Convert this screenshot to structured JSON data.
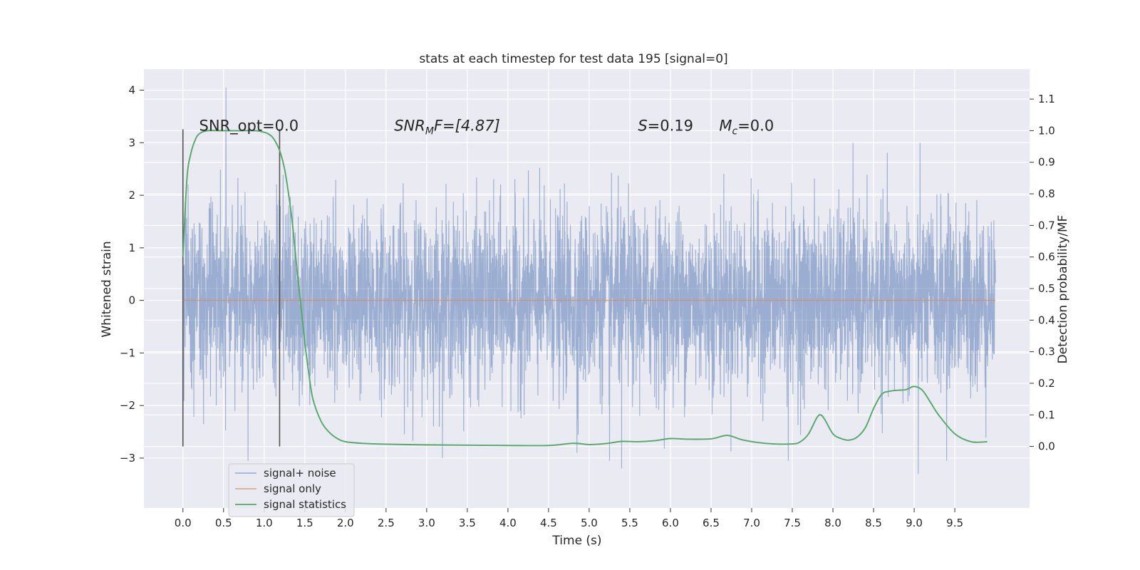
{
  "chart_data": {
    "type": "line",
    "title": "stats at each timestep for test data 195 [signal=0]",
    "xlabel": "Time (s)",
    "ylabel": "Whitened strain",
    "y2label": "Detection probability/MF",
    "xlim": [
      -0.48,
      10.42
    ],
    "ylim": [
      -3.95,
      4.4
    ],
    "y2lim": [
      -0.195,
      1.195
    ],
    "x_ticks": [
      0.0,
      0.5,
      1.0,
      1.5,
      2.0,
      2.5,
      3.0,
      3.5,
      4.0,
      4.5,
      5.0,
      5.5,
      6.0,
      6.5,
      7.0,
      7.5,
      8.0,
      8.5,
      9.0,
      9.5
    ],
    "x_tick_labels": [
      "0.0",
      "0.5",
      "1.0",
      "1.5",
      "2.0",
      "2.5",
      "3.0",
      "3.5",
      "4.0",
      "4.5",
      "5.0",
      "5.5",
      "6.0",
      "6.5",
      "7.0",
      "7.5",
      "8.0",
      "8.5",
      "9.0",
      "9.5"
    ],
    "y_ticks": [
      4,
      3,
      2,
      1,
      0,
      -1,
      -2,
      -3
    ],
    "y_tick_labels": [
      "4",
      "3",
      "2",
      "1",
      "0",
      "−1",
      "−2",
      "−3"
    ],
    "y2_ticks": [
      1.1,
      1.0,
      0.9,
      0.8,
      0.7,
      0.6,
      0.5,
      0.4,
      0.3,
      0.2,
      0.1,
      0.0
    ],
    "y2_tick_labels": [
      "1.1",
      "1.0",
      "0.9",
      "0.8",
      "0.7",
      "0.6",
      "0.5",
      "0.4",
      "0.3",
      "0.2",
      "0.1",
      "0.0"
    ],
    "grid": true,
    "legend": "lower-left",
    "annotations": {
      "snr_opt": {
        "x": 0.2,
        "y2": 1.0,
        "text": "SNR_opt=0.0"
      },
      "snr_mf": {
        "x": 2.6,
        "y2": 1.0,
        "base": "SNR",
        "sub": "M",
        "after_sub": "F=[4.87]"
      },
      "s_stat": {
        "x": 5.6,
        "y2": 1.0,
        "base": "S",
        "rest": "=0.19"
      },
      "chirp_mass": {
        "x": 6.6,
        "y2": 1.0,
        "base": "M",
        "sub": "c",
        "rest": "=0.0"
      }
    },
    "vlines": [
      {
        "x": 0.0,
        "y2_range": [
          0.0,
          1.0
        ]
      },
      {
        "x": 1.19,
        "y2_range": [
          0.0,
          1.0
        ]
      }
    ],
    "series": [
      {
        "name": "signal+ noise",
        "color": "#4c72b0",
        "axis": "left",
        "kind": "noise",
        "x_range": [
          0.0,
          10.0
        ],
        "noise_std": 0.85,
        "extremes": [
          {
            "x": 0.53,
            "y": 4.05
          },
          {
            "x": 0.8,
            "y": -3.05
          },
          {
            "x": 5.4,
            "y": -3.2
          },
          {
            "x": 9.05,
            "y": -3.3
          },
          {
            "x": 5.25,
            "y": -3.05
          },
          {
            "x": 7.45,
            "y": -3.05
          },
          {
            "x": 9.4,
            "y": -3.05
          },
          {
            "x": 4.85,
            "y": -2.9
          }
        ]
      },
      {
        "name": "signal only",
        "color": "#dd8452",
        "axis": "left",
        "x": [
          0.0,
          10.0
        ],
        "y": [
          0.0,
          0.0
        ]
      },
      {
        "name": "signal statistics",
        "color": "#55a868",
        "axis": "right",
        "x": [
          0.0,
          0.05,
          0.1,
          0.15,
          0.2,
          0.3,
          0.5,
          0.7,
          0.9,
          1.0,
          1.05,
          1.1,
          1.15,
          1.2,
          1.25,
          1.3,
          1.35,
          1.4,
          1.45,
          1.5,
          1.55,
          1.6,
          1.7,
          1.8,
          1.9,
          2.0,
          2.2,
          2.5,
          3.0,
          3.5,
          4.0,
          4.5,
          4.8,
          5.0,
          5.2,
          5.4,
          5.6,
          5.8,
          6.0,
          6.2,
          6.5,
          6.7,
          6.9,
          7.2,
          7.5,
          7.6,
          7.7,
          7.8,
          7.85,
          7.9,
          8.0,
          8.1,
          8.2,
          8.3,
          8.4,
          8.5,
          8.6,
          8.7,
          8.8,
          8.9,
          9.0,
          9.1,
          9.2,
          9.3,
          9.5,
          9.7,
          9.9
        ],
        "y": [
          0.6,
          0.85,
          0.93,
          0.97,
          0.99,
          1.0,
          1.0,
          1.0,
          1.0,
          0.995,
          0.99,
          0.98,
          0.96,
          0.93,
          0.88,
          0.8,
          0.7,
          0.57,
          0.45,
          0.33,
          0.23,
          0.15,
          0.08,
          0.045,
          0.025,
          0.015,
          0.01,
          0.007,
          0.005,
          0.004,
          0.003,
          0.003,
          0.01,
          0.006,
          0.009,
          0.016,
          0.015,
          0.018,
          0.025,
          0.023,
          0.024,
          0.035,
          0.02,
          0.009,
          0.008,
          0.015,
          0.04,
          0.09,
          0.1,
          0.085,
          0.04,
          0.025,
          0.02,
          0.03,
          0.06,
          0.12,
          0.165,
          0.175,
          0.178,
          0.18,
          0.19,
          0.178,
          0.14,
          0.1,
          0.04,
          0.015,
          0.015
        ]
      }
    ]
  }
}
